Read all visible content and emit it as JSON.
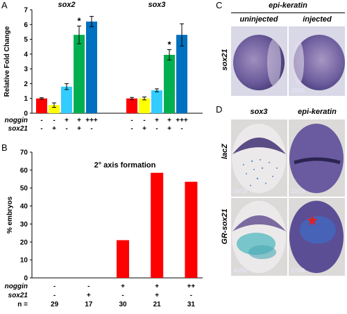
{
  "panels": {
    "A": {
      "letter": "A",
      "chart_data": {
        "type": "bar",
        "ylabel": "Relative Fold Change",
        "ylim": [
          0,
          7
        ],
        "yticks": [
          "0",
          "1",
          "2",
          "3",
          "4",
          "5",
          "6",
          "7"
        ],
        "groups": [
          {
            "gene": "sox2",
            "values": [
              1.0,
              0.55,
              1.8,
              5.3,
              6.2
            ],
            "errors": [
              0.05,
              0.15,
              0.2,
              0.6,
              0.35
            ],
            "significant": [
              false,
              false,
              false,
              true,
              false
            ]
          },
          {
            "gene": "sox3",
            "values": [
              1.0,
              1.0,
              1.55,
              3.95,
              5.3
            ],
            "errors": [
              0.07,
              0.1,
              0.1,
              0.35,
              0.75
            ],
            "significant": [
              false,
              false,
              false,
              true,
              false
            ]
          }
        ],
        "bar_colors": [
          "#ff0000",
          "#ffff00",
          "#33ccff",
          "#00b050",
          "#0070c0"
        ],
        "significance_mark": "*",
        "conditions": {
          "noggin": [
            "-",
            "-",
            "+",
            "+",
            "+++"
          ],
          "sox21": [
            "-",
            "+",
            "-",
            "+",
            "-"
          ]
        },
        "row_labels": [
          "noggin",
          "sox21"
        ]
      }
    },
    "B": {
      "letter": "B",
      "chart_data": {
        "type": "bar",
        "title": "2° axis formation",
        "ylabel": "% embryos",
        "ylim": [
          0,
          70
        ],
        "yticks": [
          "0",
          "10",
          "20",
          "30",
          "40",
          "50",
          "60",
          "70"
        ],
        "values": [
          0,
          0,
          21,
          58.5,
          53.5
        ],
        "bar_color": "#ff0000",
        "conditions": {
          "noggin": [
            "-",
            "-",
            "+",
            "+",
            "++"
          ],
          "sox21": [
            "-",
            "+",
            "-",
            "+",
            "-"
          ],
          "n": [
            "29",
            "17",
            "30",
            "21",
            "31"
          ]
        },
        "row_labels": [
          "noggin",
          "sox21",
          "n ="
        ]
      }
    },
    "C": {
      "letter": "C",
      "marker": "epi-keratin",
      "columns": [
        "uninjected",
        "injected"
      ],
      "row_label": "sox21",
      "counts": [
        "",
        "28/31"
      ]
    },
    "D": {
      "letter": "D",
      "columns": [
        "sox3",
        "epi-keratin"
      ],
      "rows": [
        "lacZ",
        "GR-sox21"
      ],
      "counts": [
        "19/19",
        "10/13",
        "45/50",
        "27/48"
      ]
    }
  }
}
